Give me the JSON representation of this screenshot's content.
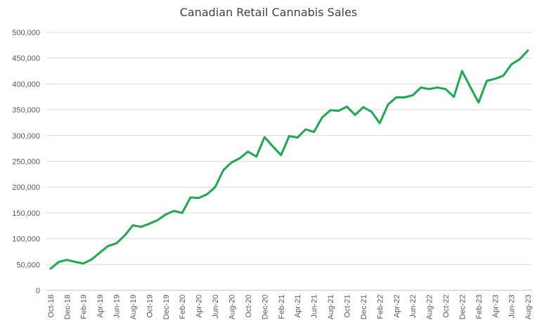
{
  "chart_data": {
    "type": "line",
    "title": "Canadian Retail Cannabis Sales",
    "xlabel": "",
    "ylabel": "",
    "ylim": [
      0,
      500000
    ],
    "yticks": [
      0,
      50000,
      100000,
      150000,
      200000,
      250000,
      300000,
      350000,
      400000,
      450000,
      500000
    ],
    "ytick_labels": [
      "0",
      "50,000",
      "100,000",
      "150,000",
      "200,000",
      "250,000",
      "300,000",
      "350,000",
      "400,000",
      "450,000",
      "500,000"
    ],
    "grid": true,
    "legend": "none",
    "line_color": "#1aab4b",
    "x": [
      "Oct-18",
      "Nov-18",
      "Dec-18",
      "Jan-19",
      "Feb-19",
      "Mar-19",
      "Apr-19",
      "May-19",
      "Jun-19",
      "Jul-19",
      "Aug-19",
      "Sep-19",
      "Oct-19",
      "Nov-19",
      "Dec-19",
      "Jan-20",
      "Feb-20",
      "Mar-20",
      "Apr-20",
      "May-20",
      "Jun-20",
      "Jul-20",
      "Aug-20",
      "Sep-20",
      "Oct-20",
      "Nov-20",
      "Dec-20",
      "Jan-21",
      "Feb-21",
      "Mar-21",
      "Apr-21",
      "May-21",
      "Jun-21",
      "Jul-21",
      "Aug-21",
      "Sep-21",
      "Oct-21",
      "Nov-21",
      "Dec-21",
      "Jan-22",
      "Feb-22",
      "Mar-22",
      "Apr-22",
      "May-22",
      "Jun-22",
      "Jul-22",
      "Aug-22",
      "Sep-22",
      "Oct-22",
      "Nov-22",
      "Dec-22",
      "Jan-23",
      "Feb-23",
      "Mar-23",
      "Apr-23",
      "May-23",
      "Jun-23",
      "Jul-23",
      "Aug-23"
    ],
    "x_tick_labels": [
      "Oct-18",
      "Dec-18",
      "Feb-19",
      "Apr-19",
      "Jun-19",
      "Aug-19",
      "Oct-19",
      "Dec-19",
      "Feb-20",
      "Apr-20",
      "Jun-20",
      "Aug-20",
      "Oct-20",
      "Dec-20",
      "Feb-21",
      "Apr-21",
      "Jun-21",
      "Aug-21",
      "Oct-21",
      "Dec-21",
      "Feb-22",
      "Apr-22",
      "Jun-22",
      "Aug-22",
      "Oct-22",
      "Dec-22",
      "Feb-23",
      "Apr-23",
      "Jun-23",
      "Aug-23"
    ],
    "values": [
      42000,
      55000,
      59000,
      55000,
      52000,
      60000,
      73000,
      86000,
      91000,
      106000,
      126000,
      123000,
      129000,
      136000,
      147000,
      154000,
      150000,
      180000,
      179000,
      186000,
      200000,
      233000,
      248000,
      256000,
      269000,
      259000,
      297000,
      279000,
      262000,
      299000,
      296000,
      312000,
      307000,
      335000,
      349000,
      348000,
      356000,
      340000,
      355000,
      346000,
      324000,
      360000,
      374000,
      374000,
      378000,
      393000,
      390000,
      393000,
      390000,
      375000,
      425000,
      394000,
      364000,
      406000,
      410000,
      416000,
      438000,
      448000,
      465000
    ]
  }
}
